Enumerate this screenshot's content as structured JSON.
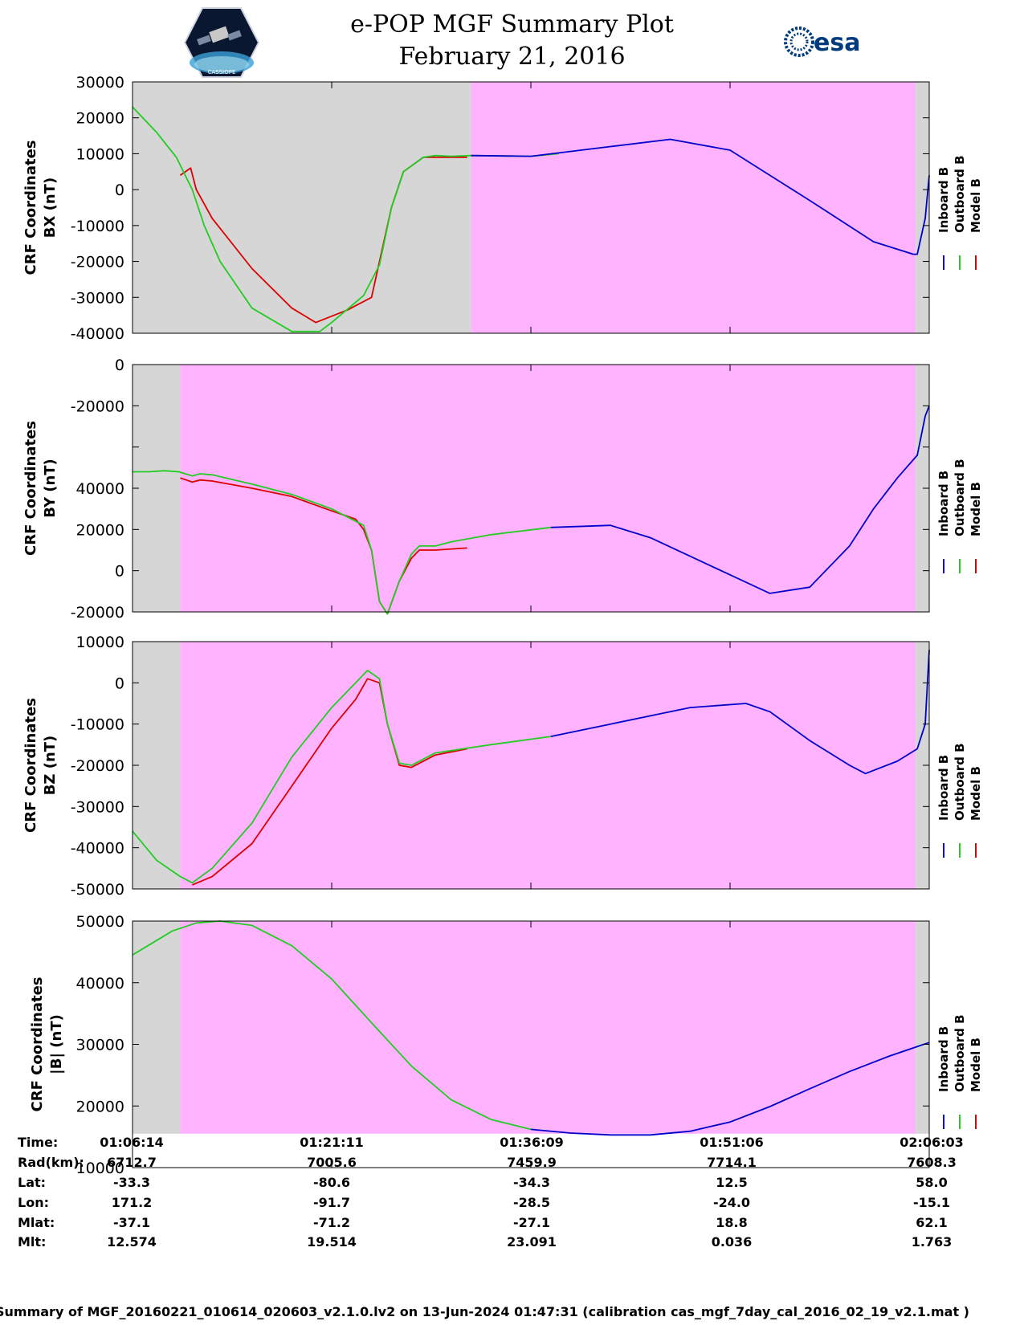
{
  "header": {
    "title_line1": "e-POP MGF Summary Plot",
    "title_line2": "February 21, 2016",
    "logo_epop": "CASSIOPE",
    "logo_esa": "esa"
  },
  "colors": {
    "inboard": "#0000cc",
    "outboard": "#22cc22",
    "model": "#dd0000",
    "gray_region": "#d6d6d6",
    "magenta_region": "#ffb3ff"
  },
  "legend": [
    "Inboard B",
    "Outboard B",
    "Model B"
  ],
  "chart_data": [
    {
      "type": "line",
      "ylabel": [
        "CRF Coordinates",
        "BX (nT)"
      ],
      "ytick_labels": [
        "30000",
        "20000",
        "10000",
        "0",
        "-10000",
        "-20000",
        "-30000",
        "-40000"
      ],
      "ylim": [
        -40000,
        30000
      ],
      "grid": false,
      "shading": [
        {
          "kind": "gray",
          "x": [
            0,
            0.425
          ]
        },
        {
          "kind": "magenta",
          "x": [
            0.425,
            0.983
          ]
        },
        {
          "kind": "gray",
          "x": [
            0.983,
            1.0
          ]
        }
      ],
      "series": [
        {
          "name": "Inboard B",
          "x": [
            0.425,
            0.5,
            0.6,
            0.675,
            0.75,
            0.85,
            0.93,
            0.98,
            0.985,
            0.995,
            1.0
          ],
          "values": [
            9500,
            9300,
            12000,
            14000,
            11000,
            -3000,
            -14500,
            -18000,
            -18000,
            -8000,
            4000
          ]
        },
        {
          "name": "Outboard B",
          "x": [
            0,
            0.03,
            0.055,
            0.075,
            0.09,
            0.11,
            0.15,
            0.2,
            0.235,
            0.25,
            0.29,
            0.31,
            0.325,
            0.34,
            0.365,
            0.38,
            0.4,
            0.425,
            0.5,
            0.535
          ],
          "values": [
            23000,
            16000,
            9000,
            0,
            -10000,
            -20000,
            -33000,
            -39500,
            -39500,
            -37000,
            -29500,
            -21000,
            -5000,
            5000,
            9000,
            9500,
            9300,
            9500,
            9300,
            10000
          ]
        },
        {
          "name": "Model B",
          "x": [
            0.06,
            0.073,
            0.08,
            0.1,
            0.15,
            0.2,
            0.23,
            0.27,
            0.3,
            0.325,
            0.34,
            0.365,
            0.38,
            0.42
          ],
          "values": [
            4000,
            6000,
            0,
            -8000,
            -22000,
            -33000,
            -37000,
            -33500,
            -30000,
            -5000,
            5000,
            9000,
            9000,
            9000
          ]
        }
      ]
    },
    {
      "type": "line",
      "ylabel": [
        "CRF Coordinates",
        "BY (nT)"
      ],
      "ytick_labels": [
        "0",
        "-20000",
        "",
        "40000",
        "20000",
        "0",
        "-20000"
      ],
      "ylim": [
        -20000,
        100000
      ],
      "grid": false,
      "shading": [
        {
          "kind": "gray",
          "x": [
            0,
            0.06
          ]
        },
        {
          "kind": "magenta",
          "x": [
            0.06,
            0.983
          ]
        },
        {
          "kind": "gray",
          "x": [
            0.983,
            1.0
          ]
        }
      ],
      "series": [
        {
          "name": "Inboard B",
          "x": [
            0.525,
            0.6,
            0.65,
            0.7,
            0.75,
            0.8,
            0.85,
            0.9,
            0.93,
            0.96,
            0.985,
            0.995,
            1.0
          ],
          "values": [
            21000,
            22000,
            16000,
            7000,
            -2000,
            -11000,
            -8000,
            12000,
            30000,
            45000,
            56000,
            75000,
            80000
          ]
        },
        {
          "name": "Outboard B",
          "x": [
            0,
            0.02,
            0.04,
            0.058,
            0.075,
            0.085,
            0.1,
            0.15,
            0.2,
            0.25,
            0.29,
            0.3,
            0.31,
            0.32,
            0.335,
            0.35,
            0.36,
            0.38,
            0.4,
            0.45,
            0.525
          ],
          "values": [
            48000,
            48000,
            48500,
            48000,
            46000,
            47000,
            46500,
            42000,
            37000,
            30000,
            22000,
            10000,
            -15000,
            -21000,
            -5000,
            8000,
            12000,
            12000,
            14000,
            17500,
            21000
          ]
        },
        {
          "name": "Model B",
          "x": [
            0.06,
            0.075,
            0.085,
            0.1,
            0.15,
            0.2,
            0.25,
            0.28,
            0.29,
            0.3,
            0.31,
            0.32,
            0.335,
            0.35,
            0.36,
            0.38,
            0.42
          ],
          "values": [
            45000,
            43000,
            44000,
            43500,
            40000,
            36000,
            29000,
            25000,
            20000,
            10000,
            -15000,
            -21000,
            -5000,
            6000,
            10000,
            10000,
            11000
          ]
        }
      ]
    },
    {
      "type": "line",
      "ylabel": [
        "CRF Coordinates",
        "BZ (nT)"
      ],
      "ytick_labels": [
        "10000",
        "0",
        "-10000",
        "-20000",
        "-30000",
        "-40000",
        "-50000"
      ],
      "ylim": [
        -50000,
        10000
      ],
      "grid": false,
      "shading": [
        {
          "kind": "gray",
          "x": [
            0,
            0.06
          ]
        },
        {
          "kind": "magenta",
          "x": [
            0.06,
            0.983
          ]
        },
        {
          "kind": "gray",
          "x": [
            0.983,
            1.0
          ]
        }
      ],
      "series": [
        {
          "name": "Inboard B",
          "x": [
            0.525,
            0.6,
            0.7,
            0.77,
            0.8,
            0.85,
            0.9,
            0.92,
            0.96,
            0.985,
            0.995,
            1.0
          ],
          "values": [
            -13000,
            -10000,
            -6000,
            -5000,
            -7000,
            -14000,
            -20000,
            -22000,
            -19000,
            -16000,
            -10000,
            8000
          ]
        },
        {
          "name": "Outboard B",
          "x": [
            0,
            0.03,
            0.06,
            0.075,
            0.1,
            0.15,
            0.2,
            0.25,
            0.28,
            0.295,
            0.31,
            0.32,
            0.335,
            0.35,
            0.38,
            0.45,
            0.525
          ],
          "values": [
            -36000,
            -43000,
            -47000,
            -48500,
            -45000,
            -34000,
            -18000,
            -6000,
            0,
            3000,
            1000,
            -10000,
            -19500,
            -20000,
            -17000,
            -15000,
            -13000
          ]
        },
        {
          "name": "Model B",
          "x": [
            0.075,
            0.1,
            0.15,
            0.2,
            0.25,
            0.28,
            0.295,
            0.31,
            0.32,
            0.335,
            0.35,
            0.38,
            0.42
          ],
          "values": [
            -49000,
            -47000,
            -39000,
            -25000,
            -11000,
            -4000,
            1000,
            0,
            -10000,
            -20000,
            -20500,
            -17500,
            -16000
          ]
        }
      ]
    },
    {
      "type": "line",
      "ylabel": [
        "CRF Coordinates",
        "|B| (nT)"
      ],
      "ytick_labels": [
        "50000",
        "40000",
        "30000",
        "20000",
        "10000"
      ],
      "ylim": [
        10000,
        50000
      ],
      "grid": false,
      "shading": [
        {
          "kind": "gray",
          "x": [
            0,
            0.06
          ],
          "y": [
            15500,
            50000
          ]
        },
        {
          "kind": "magenta",
          "x": [
            0.06,
            0.983
          ],
          "y": [
            15500,
            50000
          ]
        },
        {
          "kind": "gray",
          "x": [
            0.983,
            1.0
          ],
          "y": [
            15500,
            50000
          ]
        }
      ],
      "series": [
        {
          "name": "Inboard B",
          "x": [
            0.5,
            0.55,
            0.6,
            0.65,
            0.7,
            0.75,
            0.8,
            0.85,
            0.9,
            0.95,
            1.0
          ],
          "values": [
            16200,
            15600,
            15300,
            15300,
            15900,
            17400,
            19900,
            22800,
            25600,
            28100,
            30300
          ]
        },
        {
          "name": "Outboard B",
          "x": [
            0,
            0.05,
            0.08,
            0.11,
            0.15,
            0.2,
            0.25,
            0.3,
            0.35,
            0.4,
            0.45,
            0.5
          ],
          "values": [
            44500,
            48400,
            49700,
            50000,
            49300,
            46000,
            40600,
            33500,
            26500,
            21000,
            17800,
            16200
          ]
        }
      ]
    }
  ],
  "info_table": {
    "labels": [
      "Time:",
      "Rad(km):",
      "Lat:",
      "Lon:",
      "Mlat:",
      "Mlt:"
    ],
    "columns": [
      [
        "01:06:14",
        "6712.7",
        "-33.3",
        "171.2",
        "-37.1",
        "12.574"
      ],
      [
        "01:21:11",
        "7005.6",
        "-80.6",
        "-91.7",
        "-71.2",
        "19.514"
      ],
      [
        "01:36:09",
        "7459.9",
        "-34.3",
        "-28.5",
        "-27.1",
        "23.091"
      ],
      [
        "01:51:06",
        "7714.1",
        "12.5",
        "-24.0",
        "18.8",
        "0.036"
      ],
      [
        "02:06:03",
        "7608.3",
        "58.0",
        "-15.1",
        "62.1",
        "1.763"
      ]
    ]
  },
  "footer": "Summary of MGF_20160221_010614_020603_v2.1.0.lv2 on 13-Jun-2024 01:47:31 (calibration cas_mgf_7day_cal_2016_02_19_v2.1.mat )"
}
